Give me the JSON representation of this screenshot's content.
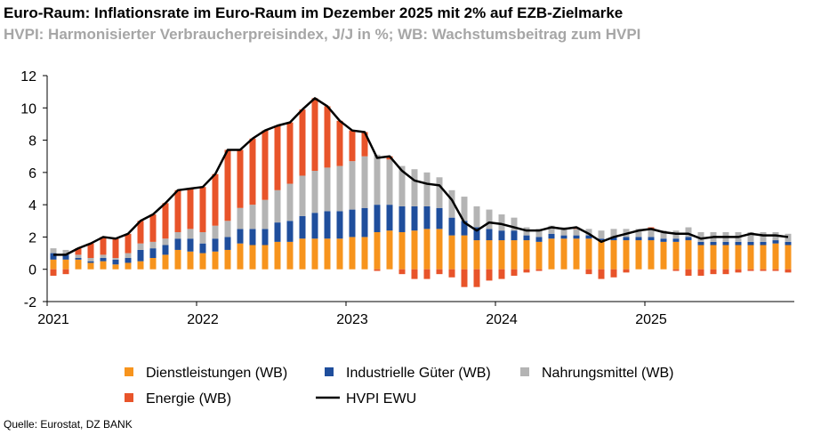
{
  "chart_data": {
    "type": "bar",
    "title": "Euro-Raum: Inflationsrate im Euro-Raum im Dezember 2025 mit 2% auf EZB-Zielmarke",
    "subtitle": "HVPI: Harmonisierter Verbraucherpreisindex, J/J in %; WB: Wachstumsbeitrag zum HVPI",
    "source": "Quelle: Eurostat, DZ BANK",
    "stacked": true,
    "categories": [
      "2021",
      null,
      null,
      null,
      null,
      null,
      null,
      null,
      null,
      null,
      null,
      null,
      "2022",
      null,
      null,
      null,
      null,
      null,
      null,
      null,
      null,
      null,
      null,
      null,
      "2023",
      null,
      null,
      null,
      null,
      null,
      null,
      null,
      null,
      null,
      null,
      null,
      "2024",
      null,
      null,
      null,
      null,
      null,
      null,
      null,
      null,
      null,
      null,
      null,
      "2025",
      null,
      null,
      null,
      null,
      null,
      null,
      null,
      null,
      null,
      null,
      null
    ],
    "ylim": [
      -2,
      12
    ],
    "yticks": [
      -2,
      0,
      2,
      4,
      6,
      8,
      10,
      12
    ],
    "series": [
      {
        "name": "Dienstleistungen (WB)",
        "color": "#f7941d",
        "values": [
          0.6,
          0.6,
          0.6,
          0.4,
          0.5,
          0.3,
          0.4,
          0.5,
          0.7,
          0.9,
          1.2,
          1.1,
          1.0,
          1.1,
          1.2,
          1.6,
          1.5,
          1.5,
          1.7,
          1.7,
          1.9,
          1.9,
          1.9,
          1.9,
          2.0,
          2.0,
          2.3,
          2.4,
          2.3,
          2.4,
          2.5,
          2.5,
          2.1,
          2.1,
          1.8,
          1.8,
          1.8,
          1.8,
          1.8,
          1.7,
          1.9,
          1.9,
          1.9,
          1.9,
          1.8,
          1.8,
          1.8,
          1.8,
          1.8,
          1.7,
          1.7,
          1.8,
          1.5,
          1.5,
          1.5,
          1.5,
          1.5,
          1.5,
          1.6,
          1.5
        ]
      },
      {
        "name": "Industrielle Güter (WB)",
        "color": "#1f4e9c",
        "values": [
          0.4,
          0.3,
          0.1,
          0.1,
          0.2,
          0.3,
          0.3,
          0.7,
          0.6,
          0.6,
          0.7,
          0.8,
          0.6,
          0.8,
          0.8,
          0.9,
          1.0,
          1.0,
          1.2,
          1.3,
          1.4,
          1.6,
          1.7,
          1.7,
          1.7,
          1.8,
          1.7,
          1.6,
          1.6,
          1.5,
          1.4,
          1.3,
          1.1,
          0.9,
          0.8,
          0.7,
          0.6,
          0.6,
          0.3,
          0.3,
          0.3,
          0.2,
          0.2,
          0.2,
          0.1,
          0.2,
          0.2,
          0.2,
          0.2,
          0.2,
          0.2,
          0.2,
          0.2,
          0.2,
          0.2,
          0.2,
          0.2,
          0.2,
          0.2,
          0.2
        ]
      },
      {
        "name": "Nahrungsmittel (WB)",
        "color": "#b4b4b4",
        "values": [
          0.3,
          0.3,
          0.2,
          0.2,
          0.2,
          0.1,
          0.3,
          0.4,
          0.4,
          0.4,
          0.4,
          0.6,
          0.7,
          0.8,
          1.0,
          1.3,
          1.5,
          1.8,
          2.0,
          2.3,
          2.5,
          2.6,
          2.7,
          2.8,
          3.0,
          3.2,
          3.1,
          2.8,
          2.5,
          2.3,
          2.1,
          1.9,
          1.7,
          1.5,
          1.3,
          1.2,
          1.0,
          0.8,
          0.5,
          0.5,
          0.5,
          0.5,
          0.4,
          0.4,
          0.5,
          0.5,
          0.5,
          0.5,
          0.5,
          0.5,
          0.5,
          0.6,
          0.6,
          0.6,
          0.6,
          0.6,
          0.6,
          0.6,
          0.5,
          0.5
        ]
      },
      {
        "name": "Energie (WB)",
        "color": "#e8542a",
        "values": [
          -0.4,
          -0.3,
          0.4,
          0.9,
          1.1,
          1.2,
          1.2,
          1.4,
          1.7,
          2.2,
          2.6,
          2.5,
          2.8,
          3.2,
          4.4,
          3.6,
          4.1,
          4.3,
          4.0,
          3.8,
          4.1,
          4.5,
          3.8,
          2.8,
          1.9,
          1.5,
          -0.1,
          0.2,
          -0.3,
          -0.6,
          -0.6,
          -0.3,
          -0.5,
          -1.1,
          -1.1,
          -0.7,
          -0.6,
          -0.4,
          -0.2,
          -0.1,
          0.0,
          0.0,
          0.1,
          -0.3,
          -0.6,
          -0.5,
          -0.2,
          0.0,
          0.1,
          0.0,
          -0.1,
          -0.4,
          -0.4,
          -0.3,
          -0.3,
          -0.2,
          -0.1,
          -0.1,
          -0.1,
          -0.2
        ]
      },
      {
        "name": "HVPI EWU",
        "type": "line",
        "color": "#000000",
        "values": [
          0.9,
          0.9,
          1.3,
          1.6,
          2.0,
          1.9,
          2.2,
          3.0,
          3.4,
          4.1,
          4.9,
          5.0,
          5.1,
          5.9,
          7.4,
          7.4,
          8.1,
          8.6,
          8.9,
          9.1,
          9.9,
          10.6,
          10.1,
          9.2,
          8.6,
          8.5,
          6.9,
          7.0,
          6.1,
          5.5,
          5.3,
          5.2,
          4.3,
          2.9,
          2.4,
          2.9,
          2.8,
          2.6,
          2.4,
          2.4,
          2.6,
          2.5,
          2.6,
          2.2,
          1.7,
          2.0,
          2.2,
          2.4,
          2.5,
          2.3,
          2.2,
          2.2,
          1.9,
          2.0,
          2.0,
          2.0,
          2.2,
          2.1,
          2.1,
          2.0
        ]
      }
    ]
  }
}
